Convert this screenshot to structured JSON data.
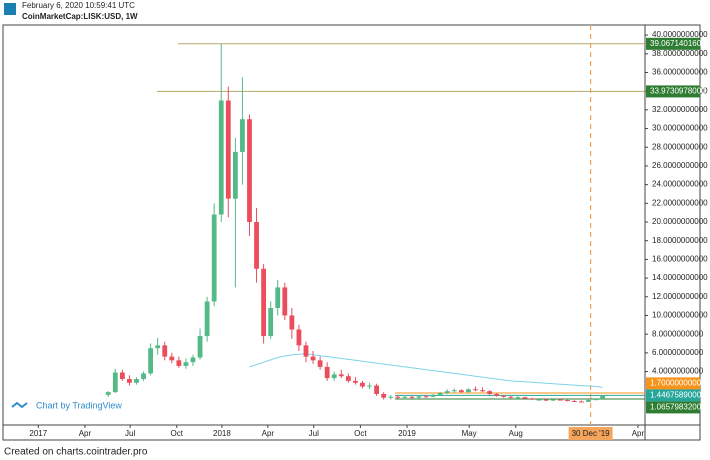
{
  "header": {
    "timestamp": "February 6, 2020 10:59:41 UTC",
    "symbol": "CoinMarketCap:LISK:USD, 1W"
  },
  "watermark": "Chart by TradingView",
  "footer": "Created on charts.cointrader.pro",
  "chart_data": {
    "type": "candlestick",
    "up_color": "#53b987",
    "down_color": "#eb4d5c",
    "open": [
      1.5,
      1.8,
      3.9,
      3.2,
      2.8,
      3.2,
      3.8,
      6.5,
      6.8,
      5.6,
      5.2,
      4.6,
      5.0,
      5.5,
      7.8,
      11.5,
      20.8,
      33.0,
      22.5,
      27.5,
      31.0,
      20.0,
      15.0,
      7.8,
      10.8,
      13.0,
      10.0,
      8.5,
      6.8,
      5.6,
      5.2,
      4.5,
      3.3,
      3.7,
      3.5,
      3.0,
      2.8,
      2.4,
      2.5,
      1.6,
      1.2,
      1.3,
      1.2,
      1.3,
      1.2,
      1.35,
      1.3,
      1.5,
      1.7,
      1.9,
      2.0,
      1.8,
      2.1,
      2.0,
      1.9,
      1.6,
      1.4,
      1.3,
      1.2,
      1.25,
      1.1,
      1.0,
      1.0,
      0.95,
      1.0,
      0.95,
      0.85,
      0.8,
      0.75,
      0.95,
      1.07
    ],
    "high": [
      1.9,
      4.3,
      4.2,
      3.6,
      3.4,
      4.0,
      7.0,
      7.6,
      7.2,
      6.0,
      5.6,
      5.4,
      5.8,
      8.6,
      12.0,
      22.0,
      39.07,
      34.5,
      29.0,
      35.5,
      31.5,
      21.5,
      15.5,
      11.5,
      13.8,
      13.5,
      10.8,
      9.0,
      7.2,
      6.2,
      5.6,
      5.0,
      4.0,
      4.2,
      3.8,
      3.4,
      3.0,
      2.8,
      2.7,
      1.8,
      1.5,
      1.5,
      1.4,
      1.4,
      1.4,
      1.5,
      1.6,
      1.8,
      2.1,
      2.2,
      2.1,
      2.2,
      2.4,
      2.3,
      2.0,
      1.7,
      1.5,
      1.4,
      1.35,
      1.3,
      1.2,
      1.1,
      1.1,
      1.05,
      1.1,
      1.0,
      0.95,
      0.9,
      1.0,
      1.1,
      1.5
    ],
    "low": [
      1.3,
      1.7,
      3.0,
      2.5,
      2.6,
      3.0,
      3.6,
      5.8,
      5.2,
      4.9,
      4.4,
      4.3,
      4.6,
      5.3,
      7.2,
      11.0,
      20.0,
      20.5,
      13.0,
      24.0,
      18.5,
      13.5,
      7.0,
      7.5,
      10.0,
      9.5,
      7.5,
      6.2,
      5.0,
      4.8,
      4.2,
      3.0,
      3.0,
      3.3,
      2.8,
      2.6,
      2.2,
      2.1,
      1.4,
      1.0,
      1.0,
      1.1,
      1.0,
      1.1,
      1.1,
      1.2,
      1.25,
      1.4,
      1.6,
      1.7,
      1.7,
      1.7,
      1.9,
      1.8,
      1.5,
      1.3,
      1.2,
      1.1,
      1.1,
      1.05,
      0.95,
      0.9,
      0.85,
      0.85,
      0.9,
      0.8,
      0.75,
      0.7,
      0.72,
      0.9,
      1.05
    ],
    "close": [
      1.8,
      3.9,
      3.2,
      2.8,
      3.2,
      3.8,
      6.5,
      6.8,
      5.6,
      5.2,
      4.6,
      5.0,
      5.5,
      7.8,
      11.5,
      20.8,
      33.0,
      22.5,
      27.5,
      31.0,
      20.0,
      15.0,
      7.8,
      10.8,
      13.0,
      10.0,
      8.5,
      6.8,
      5.6,
      5.2,
      4.5,
      3.3,
      3.7,
      3.5,
      3.0,
      2.8,
      2.4,
      2.5,
      1.6,
      1.2,
      1.3,
      1.2,
      1.3,
      1.2,
      1.35,
      1.3,
      1.5,
      1.7,
      1.9,
      2.0,
      1.8,
      2.1,
      2.0,
      1.9,
      1.6,
      1.4,
      1.3,
      1.2,
      1.25,
      1.1,
      1.0,
      1.0,
      0.95,
      1.0,
      0.95,
      0.85,
      0.8,
      0.75,
      0.95,
      1.07,
      1.45
    ],
    "moving_average": {
      "color": "#7fd3e8",
      "values": [
        null,
        null,
        null,
        null,
        null,
        null,
        null,
        null,
        null,
        null,
        null,
        null,
        null,
        null,
        null,
        null,
        null,
        null,
        null,
        null,
        4.5,
        4.75,
        5.0,
        5.25,
        5.5,
        5.65,
        5.8,
        5.85,
        5.9,
        5.8,
        5.7,
        5.6,
        5.5,
        5.4,
        5.3,
        5.2,
        5.1,
        5.0,
        4.9,
        4.8,
        4.7,
        4.6,
        4.5,
        4.4,
        4.3,
        4.2,
        4.1,
        4.0,
        3.9,
        3.8,
        3.7,
        3.6,
        3.5,
        3.4,
        3.3,
        3.2,
        3.1,
        3.0,
        2.95,
        2.9,
        2.85,
        2.8,
        2.75,
        2.7,
        2.65,
        2.6,
        2.55,
        2.5,
        2.45,
        2.4,
        2.3
      ]
    },
    "xlim": [
      -14.9,
      76
    ],
    "xticks": [
      {
        "value": -9.9,
        "label": "2017"
      },
      {
        "value": -3.3,
        "label": "Apr"
      },
      {
        "value": 3.1,
        "label": "Jul"
      },
      {
        "value": 9.7,
        "label": "Oct"
      },
      {
        "value": 16.1,
        "label": "2018"
      },
      {
        "value": 22.6,
        "label": "Apr"
      },
      {
        "value": 29.1,
        "label": "Jul"
      },
      {
        "value": 35.7,
        "label": "Oct"
      },
      {
        "value": 42.3,
        "label": "2019"
      },
      {
        "value": 51.1,
        "label": "May"
      },
      {
        "value": 57.7,
        "label": "Aug"
      },
      {
        "value": 75,
        "label": "Apr"
      }
    ],
    "marker": {
      "value": 68.3,
      "label": "30 Dec '19",
      "color": "#f5a45b"
    },
    "ylim": [
      -1.72,
      41.08
    ],
    "yticks": [
      {
        "value": 4,
        "label": "4.0000000000"
      },
      {
        "value": 6,
        "label": "6.0000000000"
      },
      {
        "value": 8,
        "label": "8.0000000000"
      },
      {
        "value": 10,
        "label": "10.0000000000"
      },
      {
        "value": 12,
        "label": "12.0000000000"
      },
      {
        "value": 14,
        "label": "14.0000000000"
      },
      {
        "value": 16,
        "label": "16.0000000000"
      },
      {
        "value": 18,
        "label": "18.0000000000"
      },
      {
        "value": 20,
        "label": "20.0000000000"
      },
      {
        "value": 22,
        "label": "22.0000000000"
      },
      {
        "value": 24,
        "label": "24.0000000000"
      },
      {
        "value": 26,
        "label": "26.0000000000"
      },
      {
        "value": 28,
        "label": "28.0000000000"
      },
      {
        "value": 30,
        "label": "30.0000000000"
      },
      {
        "value": 32,
        "label": "32.0000000000"
      },
      {
        "value": 34,
        "label": "34.0000000000"
      },
      {
        "value": 36,
        "label": "36.0000000000"
      },
      {
        "value": 38,
        "label": "38.0000000000"
      },
      {
        "value": 40,
        "label": "40.0000000000"
      }
    ],
    "levels": [
      {
        "value": 39.06714016,
        "label": "39.0671401600",
        "color": "#2e7d32"
      },
      {
        "value": 33.9730978,
        "label": "33.9730978000",
        "color": "#2e7d32"
      },
      {
        "value": 1.7,
        "label": "1.7000000000",
        "color": "#f7931a"
      },
      {
        "value": 1.4467589,
        "label": "1.4467589000",
        "color": "#26a69a"
      },
      {
        "value": 1.06579832,
        "label": "1.0657983200",
        "color": "#2e7d32"
      }
    ]
  }
}
